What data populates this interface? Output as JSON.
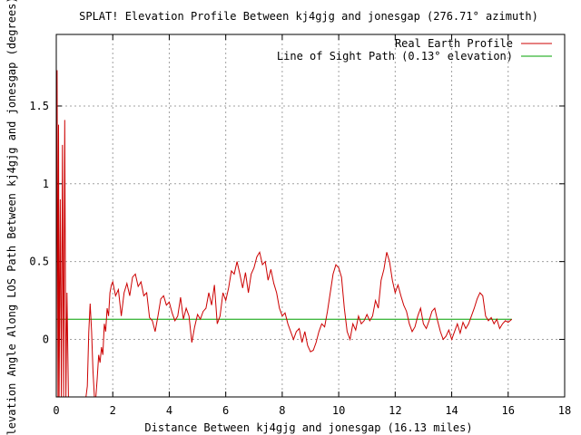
{
  "chart_data": {
    "type": "line",
    "title": "SPLAT! Elevation Profile Between kj4gjg and jonesgap (276.71° azimuth)",
    "xlabel": "Distance Between kj4gjg and jonesgap (16.13 miles)",
    "ylabel": "Elevation Angle Along LOS Path Between kj4gjg and jonesgap (degrees)",
    "xlim": [
      0,
      18
    ],
    "ylim": [
      -0.37,
      1.96
    ],
    "x_ticks": [
      0,
      2,
      4,
      6,
      8,
      10,
      12,
      14,
      16,
      18
    ],
    "x_tick_labels": [
      "0",
      "2",
      "4",
      "6",
      "8",
      "10",
      "12",
      "14",
      "16",
      "18"
    ],
    "y_ticks": [
      0,
      0.5,
      1,
      1.5
    ],
    "y_tick_labels": [
      "0",
      "0.5",
      "1",
      "1.5"
    ],
    "grid": true,
    "legend_position": "top-right",
    "series": [
      {
        "name": "Real Earth Profile",
        "color": "#cc0000",
        "x": [
          0.0,
          0.03,
          0.06,
          0.08,
          0.1,
          0.14,
          0.18,
          0.22,
          0.26,
          0.3,
          0.34,
          0.38,
          0.43,
          0.5,
          0.6,
          0.7,
          0.8,
          0.9,
          1.0,
          1.05,
          1.1,
          1.15,
          1.2,
          1.25,
          1.3,
          1.35,
          1.4,
          1.45,
          1.5,
          1.55,
          1.6,
          1.65,
          1.7,
          1.75,
          1.8,
          1.85,
          1.9,
          1.95,
          2.0,
          2.1,
          2.2,
          2.3,
          2.4,
          2.5,
          2.6,
          2.7,
          2.8,
          2.9,
          3.0,
          3.1,
          3.2,
          3.3,
          3.4,
          3.5,
          3.6,
          3.7,
          3.8,
          3.9,
          4.0,
          4.1,
          4.2,
          4.3,
          4.4,
          4.5,
          4.6,
          4.7,
          4.8,
          4.9,
          5.0,
          5.1,
          5.2,
          5.3,
          5.4,
          5.5,
          5.6,
          5.7,
          5.8,
          5.9,
          6.0,
          6.1,
          6.2,
          6.3,
          6.4,
          6.5,
          6.6,
          6.7,
          6.8,
          6.9,
          7.0,
          7.1,
          7.2,
          7.3,
          7.4,
          7.5,
          7.6,
          7.7,
          7.8,
          7.9,
          8.0,
          8.1,
          8.2,
          8.3,
          8.4,
          8.5,
          8.6,
          8.7,
          8.8,
          8.9,
          9.0,
          9.1,
          9.2,
          9.3,
          9.4,
          9.5,
          9.6,
          9.7,
          9.8,
          9.9,
          10.0,
          10.1,
          10.2,
          10.3,
          10.4,
          10.5,
          10.6,
          10.7,
          10.8,
          10.9,
          11.0,
          11.1,
          11.2,
          11.3,
          11.4,
          11.5,
          11.6,
          11.7,
          11.8,
          11.9,
          12.0,
          12.1,
          12.2,
          12.3,
          12.4,
          12.5,
          12.6,
          12.7,
          12.8,
          12.9,
          13.0,
          13.1,
          13.2,
          13.3,
          13.4,
          13.5,
          13.6,
          13.7,
          13.8,
          13.9,
          14.0,
          14.1,
          14.2,
          14.3,
          14.4,
          14.5,
          14.6,
          14.7,
          14.8,
          14.9,
          15.0,
          15.1,
          15.2,
          15.3,
          15.4,
          15.5,
          15.6,
          15.7,
          15.8,
          15.9,
          16.0,
          16.13
        ],
        "y": [
          -0.37,
          1.73,
          -0.37,
          1.38,
          -0.37,
          0.9,
          -0.37,
          1.25,
          -0.37,
          1.41,
          -0.37,
          0.3,
          -0.37,
          -0.37,
          -0.37,
          -0.37,
          -0.37,
          -0.37,
          -0.37,
          -0.37,
          -0.3,
          0.05,
          0.23,
          0.05,
          -0.2,
          -0.37,
          -0.37,
          -0.25,
          -0.1,
          -0.15,
          -0.05,
          -0.1,
          0.1,
          0.05,
          0.2,
          0.15,
          0.3,
          0.35,
          0.37,
          0.28,
          0.32,
          0.15,
          0.3,
          0.36,
          0.28,
          0.4,
          0.42,
          0.34,
          0.37,
          0.28,
          0.3,
          0.14,
          0.12,
          0.05,
          0.15,
          0.26,
          0.28,
          0.22,
          0.24,
          0.17,
          0.12,
          0.15,
          0.27,
          0.13,
          0.2,
          0.15,
          -0.02,
          0.08,
          0.16,
          0.13,
          0.18,
          0.2,
          0.3,
          0.22,
          0.35,
          0.1,
          0.15,
          0.3,
          0.25,
          0.33,
          0.44,
          0.42,
          0.5,
          0.42,
          0.33,
          0.43,
          0.3,
          0.42,
          0.46,
          0.53,
          0.56,
          0.48,
          0.5,
          0.38,
          0.45,
          0.36,
          0.3,
          0.2,
          0.15,
          0.17,
          0.1,
          0.05,
          0.0,
          0.05,
          0.07,
          -0.02,
          0.05,
          -0.04,
          -0.08,
          -0.07,
          -0.02,
          0.05,
          0.1,
          0.08,
          0.18,
          0.3,
          0.42,
          0.48,
          0.46,
          0.4,
          0.2,
          0.05,
          0.0,
          0.1,
          0.06,
          0.15,
          0.1,
          0.12,
          0.16,
          0.12,
          0.15,
          0.25,
          0.2,
          0.38,
          0.45,
          0.56,
          0.5,
          0.38,
          0.3,
          0.35,
          0.28,
          0.22,
          0.18,
          0.1,
          0.05,
          0.08,
          0.15,
          0.2,
          0.1,
          0.07,
          0.12,
          0.18,
          0.2,
          0.12,
          0.05,
          0.0,
          0.02,
          0.06,
          0.0,
          0.05,
          0.1,
          0.04,
          0.11,
          0.07,
          0.1,
          0.15,
          0.2,
          0.26,
          0.3,
          0.28,
          0.15,
          0.12,
          0.14,
          0.1,
          0.13,
          0.07,
          0.1,
          0.12,
          0.11,
          0.13
        ]
      },
      {
        "name": "Line of Sight Path (0.13° elevation)",
        "color": "#00a000",
        "x": [
          0,
          16.13
        ],
        "y": [
          0.13,
          0.13
        ]
      }
    ]
  }
}
